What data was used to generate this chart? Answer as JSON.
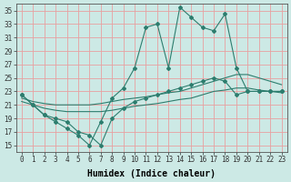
{
  "xlabel": "Humidex (Indice chaleur)",
  "x": [
    0,
    1,
    2,
    3,
    4,
    5,
    6,
    7,
    8,
    9,
    10,
    11,
    12,
    13,
    14,
    15,
    16,
    17,
    18,
    19,
    20,
    21,
    22,
    23
  ],
  "line_max": [
    22.5,
    21.0,
    19.5,
    18.5,
    17.5,
    16.5,
    15.0,
    18.5,
    22.0,
    23.5,
    26.5,
    32.5,
    33.0,
    26.5,
    35.5,
    34.0,
    32.5,
    32.0,
    34.5,
    26.5,
    23.0,
    23.0,
    23.0,
    23.0
  ],
  "line_upper": [
    22.0,
    21.5,
    21.2,
    21.0,
    21.0,
    21.0,
    21.0,
    21.2,
    21.5,
    21.8,
    22.0,
    22.2,
    22.5,
    22.8,
    23.0,
    23.5,
    24.0,
    24.5,
    25.0,
    25.5,
    25.5,
    25.0,
    24.5,
    24.0
  ],
  "line_lower": [
    21.5,
    21.0,
    20.5,
    20.2,
    20.0,
    20.0,
    20.0,
    20.0,
    20.2,
    20.5,
    20.8,
    21.0,
    21.2,
    21.5,
    21.8,
    22.0,
    22.5,
    23.0,
    23.2,
    23.5,
    23.5,
    23.2,
    23.0,
    22.8
  ],
  "line_min": [
    22.5,
    21.0,
    19.5,
    19.0,
    18.5,
    17.0,
    16.5,
    15.0,
    19.0,
    20.5,
    21.5,
    22.0,
    22.5,
    23.0,
    23.5,
    24.0,
    24.5,
    25.0,
    24.5,
    22.5,
    23.0,
    23.0,
    23.0,
    23.0
  ],
  "line_color": "#2d7d6e",
  "bg_color": "#cce9e5",
  "grid_color": "#e8a0a0",
  "xlim": [
    -0.5,
    23.5
  ],
  "ylim": [
    14,
    36
  ],
  "yticks": [
    15,
    17,
    19,
    21,
    23,
    25,
    27,
    29,
    31,
    33,
    35
  ],
  "xticks": [
    0,
    1,
    2,
    3,
    4,
    5,
    6,
    7,
    8,
    9,
    10,
    11,
    12,
    13,
    14,
    15,
    16,
    17,
    18,
    19,
    20,
    21,
    22,
    23
  ]
}
